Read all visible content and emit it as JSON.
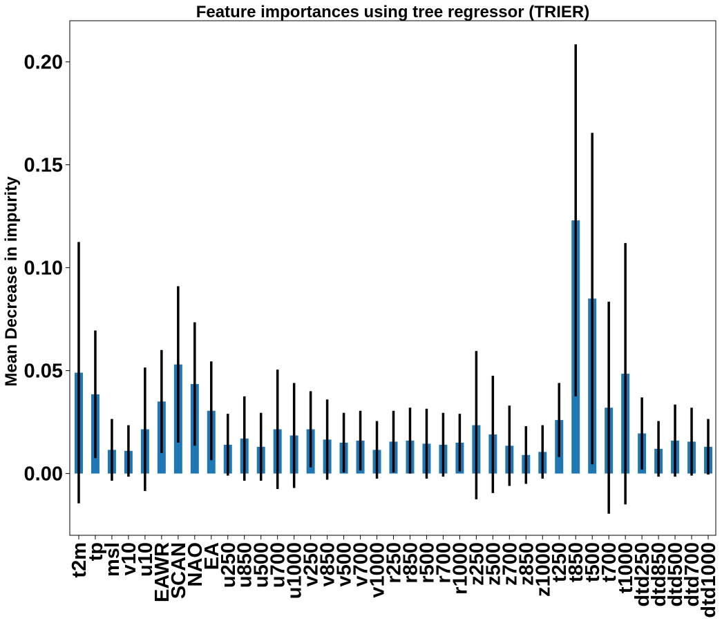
{
  "chart_data": {
    "type": "bar",
    "title": "Feature importances using tree regressor (TRIER)",
    "ylabel": "Mean Decrease in impurity",
    "xlabel": "",
    "ylim": [
      -0.03,
      0.22
    ],
    "yticks": [
      "0.00",
      "0.05",
      "0.10",
      "0.15",
      "0.20"
    ],
    "ytick_values": [
      0.0,
      0.05,
      0.1,
      0.15,
      0.2
    ],
    "bar_color": "#1f77b4",
    "errorbar_color": "#000000",
    "grid": false,
    "categories": [
      "t2m",
      "tp",
      "msl",
      "v10",
      "u10",
      "EAWR",
      "SCAN",
      "NAO",
      "EA",
      "u250",
      "u850",
      "u500",
      "u700",
      "u1000",
      "v250",
      "v850",
      "v500",
      "v700",
      "v1000",
      "r250",
      "r850",
      "r500",
      "r700",
      "r1000",
      "z250",
      "z500",
      "z700",
      "z850",
      "z1000",
      "t250",
      "t850",
      "t500",
      "t700",
      "t1000",
      "dtd250",
      "dtd850",
      "dtd500",
      "dtd700",
      "dtd1000"
    ],
    "values": [
      0.049,
      0.0385,
      0.0115,
      0.011,
      0.0215,
      0.035,
      0.053,
      0.0435,
      0.0305,
      0.014,
      0.017,
      0.013,
      0.0215,
      0.0185,
      0.0215,
      0.0165,
      0.015,
      0.016,
      0.0115,
      0.0155,
      0.016,
      0.0145,
      0.014,
      0.015,
      0.0235,
      0.019,
      0.0135,
      0.009,
      0.0105,
      0.026,
      0.123,
      0.085,
      0.032,
      0.0485,
      0.0195,
      0.012,
      0.016,
      0.0155,
      0.013
    ],
    "errors": [
      0.0635,
      0.031,
      0.015,
      0.0125,
      0.03,
      0.025,
      0.038,
      0.03,
      0.024,
      0.015,
      0.0205,
      0.0165,
      0.029,
      0.0255,
      0.0185,
      0.0195,
      0.0145,
      0.0145,
      0.014,
      0.015,
      0.016,
      0.017,
      0.0155,
      0.014,
      0.036,
      0.0285,
      0.0195,
      0.014,
      0.013,
      0.018,
      0.0855,
      0.0805,
      0.0515,
      0.0635,
      0.0175,
      0.0135,
      0.0175,
      0.0165,
      0.0135
    ]
  }
}
